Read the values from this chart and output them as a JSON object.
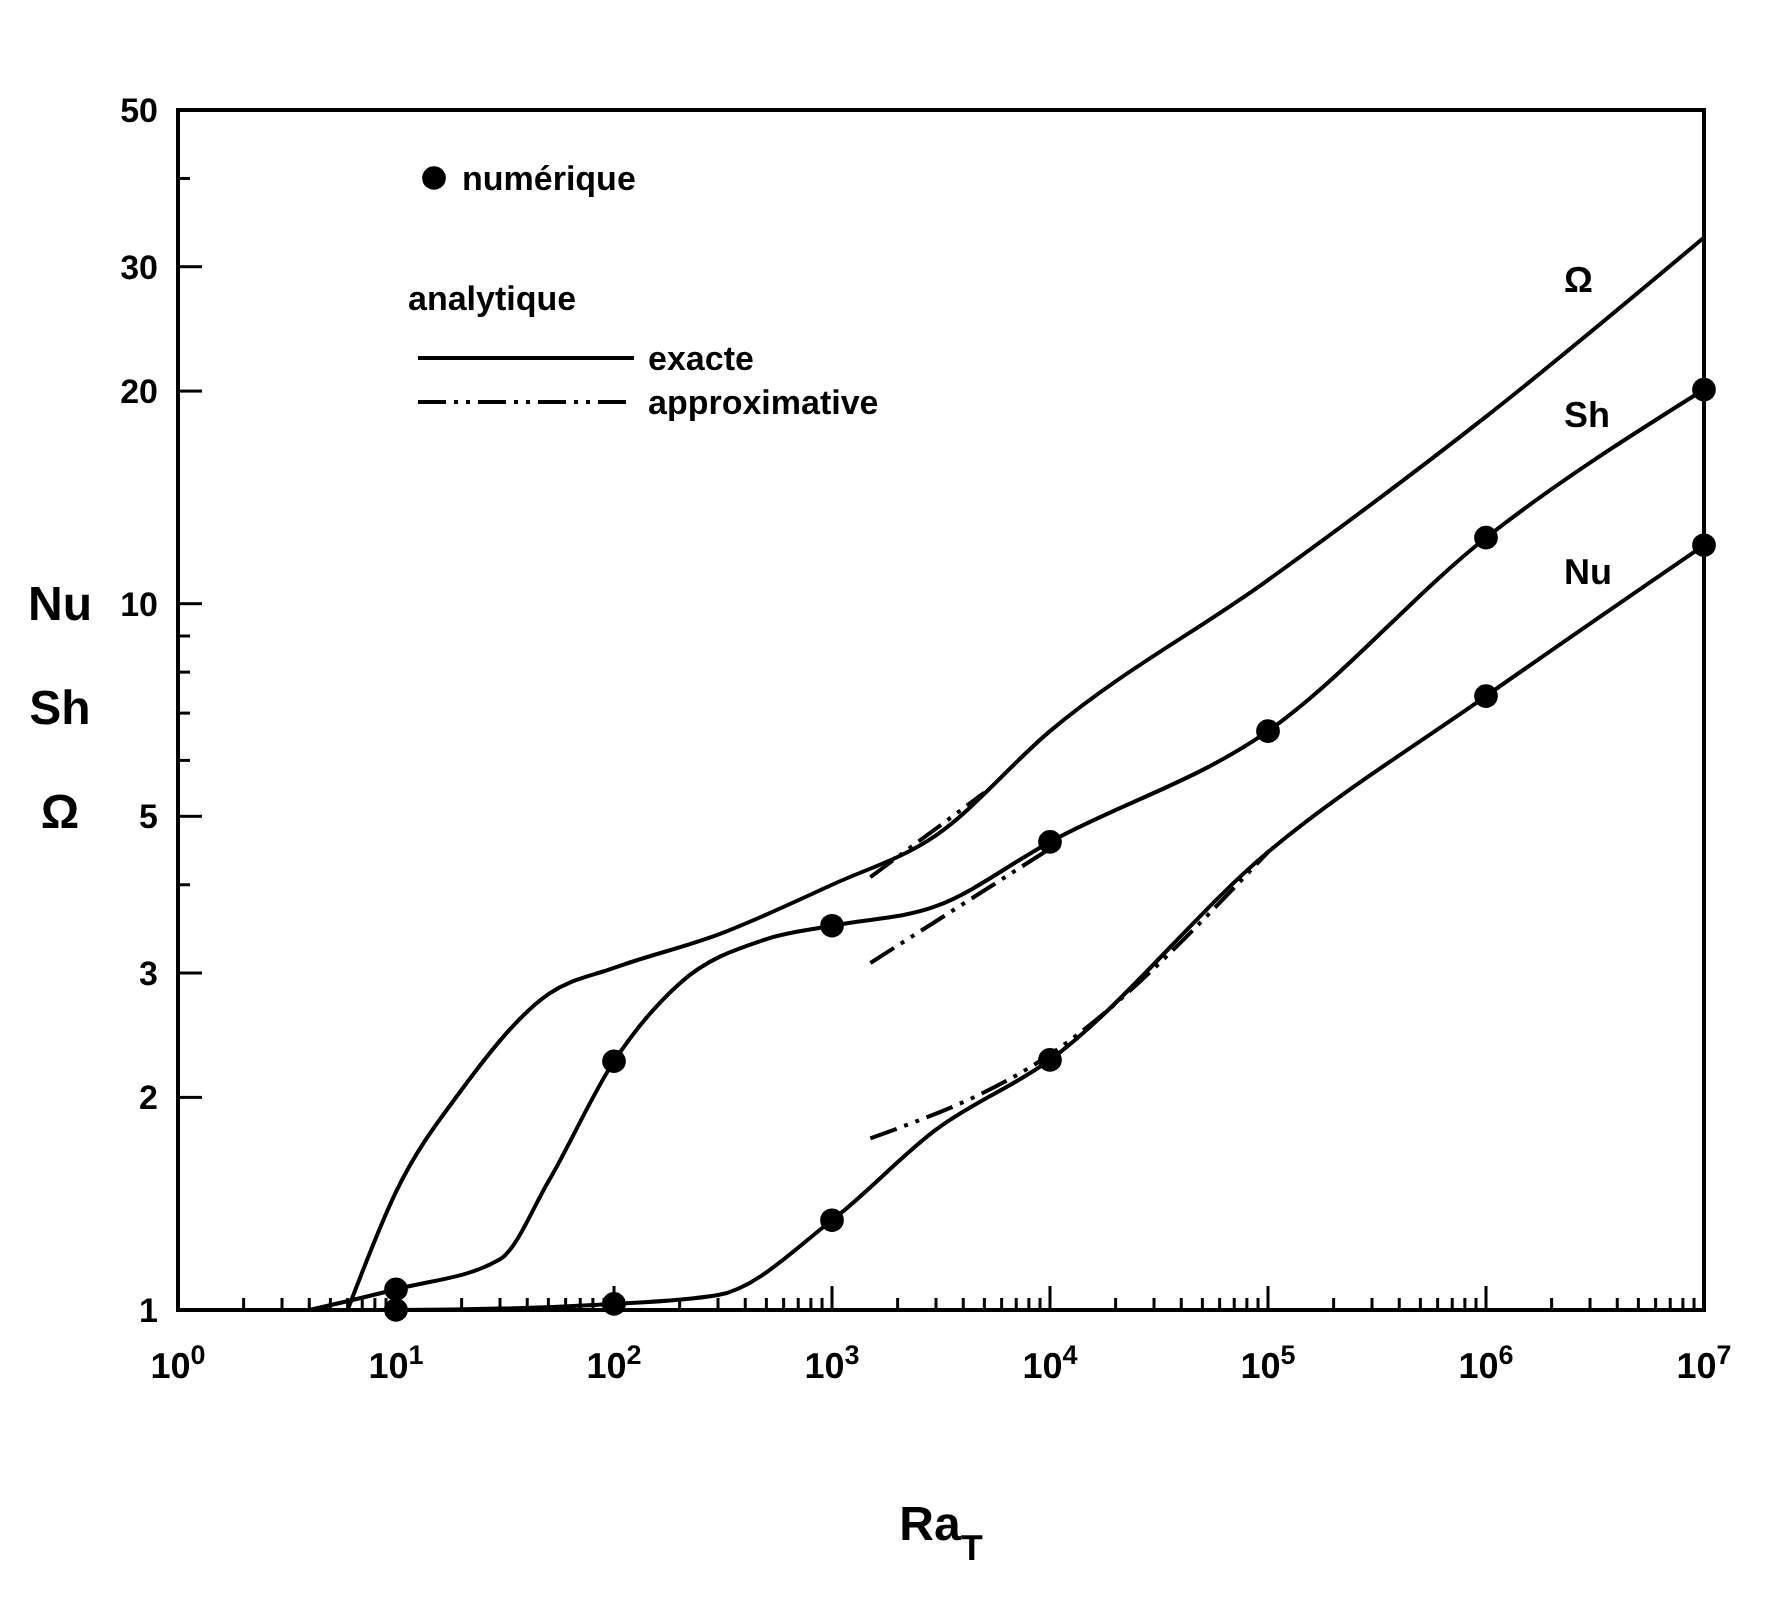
{
  "chart_data": {
    "type": "line",
    "xlabel": "Ra$_{T}$",
    "ylabel": "Nu\nSh\nΩ",
    "log": "xy",
    "xlim": [
      1,
      10000000
    ],
    "ylim": [
      1,
      50
    ],
    "xticks": [
      {
        "value": 1,
        "label": "10$^{0}$"
      },
      {
        "value": 10,
        "label": "10$^{1}$"
      },
      {
        "value": 100,
        "label": "10$^{2}$"
      },
      {
        "value": 1000,
        "label": "10$^{3}$"
      },
      {
        "value": 10000,
        "label": "10$^{4}$"
      },
      {
        "value": 100000,
        "label": "10$^{5}$"
      },
      {
        "value": 1000000,
        "label": "10$^{6}$"
      },
      {
        "value": 10000000,
        "label": "10$^{7}$"
      },
      {
        "value": 2,
        "label": null
      },
      {
        "value": 3,
        "label": null
      },
      {
        "value": 4,
        "label": null
      },
      {
        "value": 5,
        "label": null
      },
      {
        "value": 6,
        "label": null
      },
      {
        "value": 7,
        "label": null
      },
      {
        "value": 8,
        "label": null
      },
      {
        "value": 9,
        "label": null
      },
      {
        "value": 20,
        "label": null
      },
      {
        "value": 30,
        "label": null
      },
      {
        "value": 40,
        "label": null
      },
      {
        "value": 50,
        "label": null
      },
      {
        "value": 60,
        "label": null
      },
      {
        "value": 70,
        "label": null
      },
      {
        "value": 80,
        "label": null
      },
      {
        "value": 90,
        "label": null
      },
      {
        "value": 200,
        "label": null
      },
      {
        "value": 300,
        "label": null
      },
      {
        "value": 400,
        "label": null
      },
      {
        "value": 500,
        "label": null
      },
      {
        "value": 600,
        "label": null
      },
      {
        "value": 700,
        "label": null
      },
      {
        "value": 800,
        "label": null
      },
      {
        "value": 900,
        "label": null
      },
      {
        "value": 2000,
        "label": null
      },
      {
        "value": 3000,
        "label": null
      },
      {
        "value": 4000,
        "label": null
      },
      {
        "value": 5000,
        "label": null
      },
      {
        "value": 6000,
        "label": null
      },
      {
        "value": 7000,
        "label": null
      },
      {
        "value": 8000,
        "label": null
      },
      {
        "value": 9000,
        "label": null
      },
      {
        "value": 20000,
        "label": null
      },
      {
        "value": 30000,
        "label": null
      },
      {
        "value": 40000,
        "label": null
      },
      {
        "value": 50000,
        "label": null
      },
      {
        "value": 60000,
        "label": null
      },
      {
        "value": 70000,
        "label": null
      },
      {
        "value": 80000,
        "label": null
      },
      {
        "value": 90000,
        "label": null
      },
      {
        "value": 200000,
        "label": null
      },
      {
        "value": 300000,
        "label": null
      },
      {
        "value": 400000,
        "label": null
      },
      {
        "value": 500000,
        "label": null
      },
      {
        "value": 600000,
        "label": null
      },
      {
        "value": 700000,
        "label": null
      },
      {
        "value": 800000,
        "label": null
      },
      {
        "value": 900000,
        "label": null
      },
      {
        "value": 2000000,
        "label": null
      },
      {
        "value": 3000000,
        "label": null
      },
      {
        "value": 4000000,
        "label": null
      },
      {
        "value": 5000000,
        "label": null
      },
      {
        "value": 6000000,
        "label": null
      },
      {
        "value": 7000000,
        "label": null
      },
      {
        "value": 8000000,
        "label": null
      },
      {
        "value": 9000000,
        "label": null
      }
    ],
    "yticks": [
      1,
      2,
      3,
      5,
      10,
      20,
      30,
      50,
      {
        "value": 4,
        "label": null
      },
      {
        "value": 6,
        "label": null
      },
      {
        "value": 7,
        "label": null
      },
      {
        "value": 8,
        "label": null
      },
      {
        "value": 9,
        "label": null
      },
      {
        "value": 40,
        "label": null
      }
    ],
    "grid": false,
    "legend": "top left",
    "line_style": "solid",
    "series": [
      {
        "name": "numérique",
        "type": "scatter",
        "marker": "circle",
        "color": "#000000",
        "x": [
          10,
          100,
          1000,
          10000,
          100000,
          1000000,
          10000000,
          10,
          100,
          1000,
          10000,
          1000000,
          10000000
        ],
        "values": [
          1.07,
          2.25,
          3.5,
          4.6,
          6.6,
          12.4,
          20.1,
          1.0,
          1.02,
          1.34,
          2.26,
          7.4,
          12.1
        ]
      },
      {
        "name": "Ω",
        "color": "#000000",
        "x": [
          6,
          10,
          20,
          50,
          100,
          300,
          1000,
          3000,
          10000,
          100000,
          1000000,
          10000000
        ],
        "values": [
          1,
          1.47,
          2.05,
          2.8,
          3.05,
          3.4,
          4.0,
          4.7,
          6.6,
          10.8,
          18.4,
          33
        ]
      },
      {
        "name": "Sh",
        "color": "#000000",
        "x": [
          4,
          10,
          30,
          50,
          100,
          200,
          500,
          1000,
          3000,
          10000,
          100000,
          1000000,
          10000000
        ],
        "values": [
          1,
          1.07,
          1.18,
          1.52,
          2.25,
          2.9,
          3.35,
          3.5,
          3.73,
          4.6,
          6.6,
          12.4,
          20.1
        ]
      },
      {
        "name": "Nu",
        "color": "#000000",
        "x": [
          3,
          10,
          100,
          300,
          1000,
          3000,
          10000,
          100000,
          1000000,
          10000000
        ],
        "values": [
          1,
          1,
          1.02,
          1.05,
          1.34,
          1.8,
          2.26,
          4.45,
          7.4,
          12.1
        ]
      },
      {
        "color": "#000000",
        "line_style": "dashdot",
        "x": [
          1500,
          5000
        ],
        "values": [
          4.1,
          5.4
        ]
      },
      {
        "color": "#000000",
        "line_style": "dashdot",
        "x": [
          1500,
          10000
        ],
        "values": [
          3.1,
          4.5
        ]
      },
      {
        "color": "#000000",
        "line_style": "dashdot",
        "x": [
          1500,
          10000,
          100000
        ],
        "values": [
          1.75,
          2.3,
          4.45
        ]
      }
    ],
    "annotations": [
      "analytique",
      "exacte",
      "approximative"
    ]
  }
}
